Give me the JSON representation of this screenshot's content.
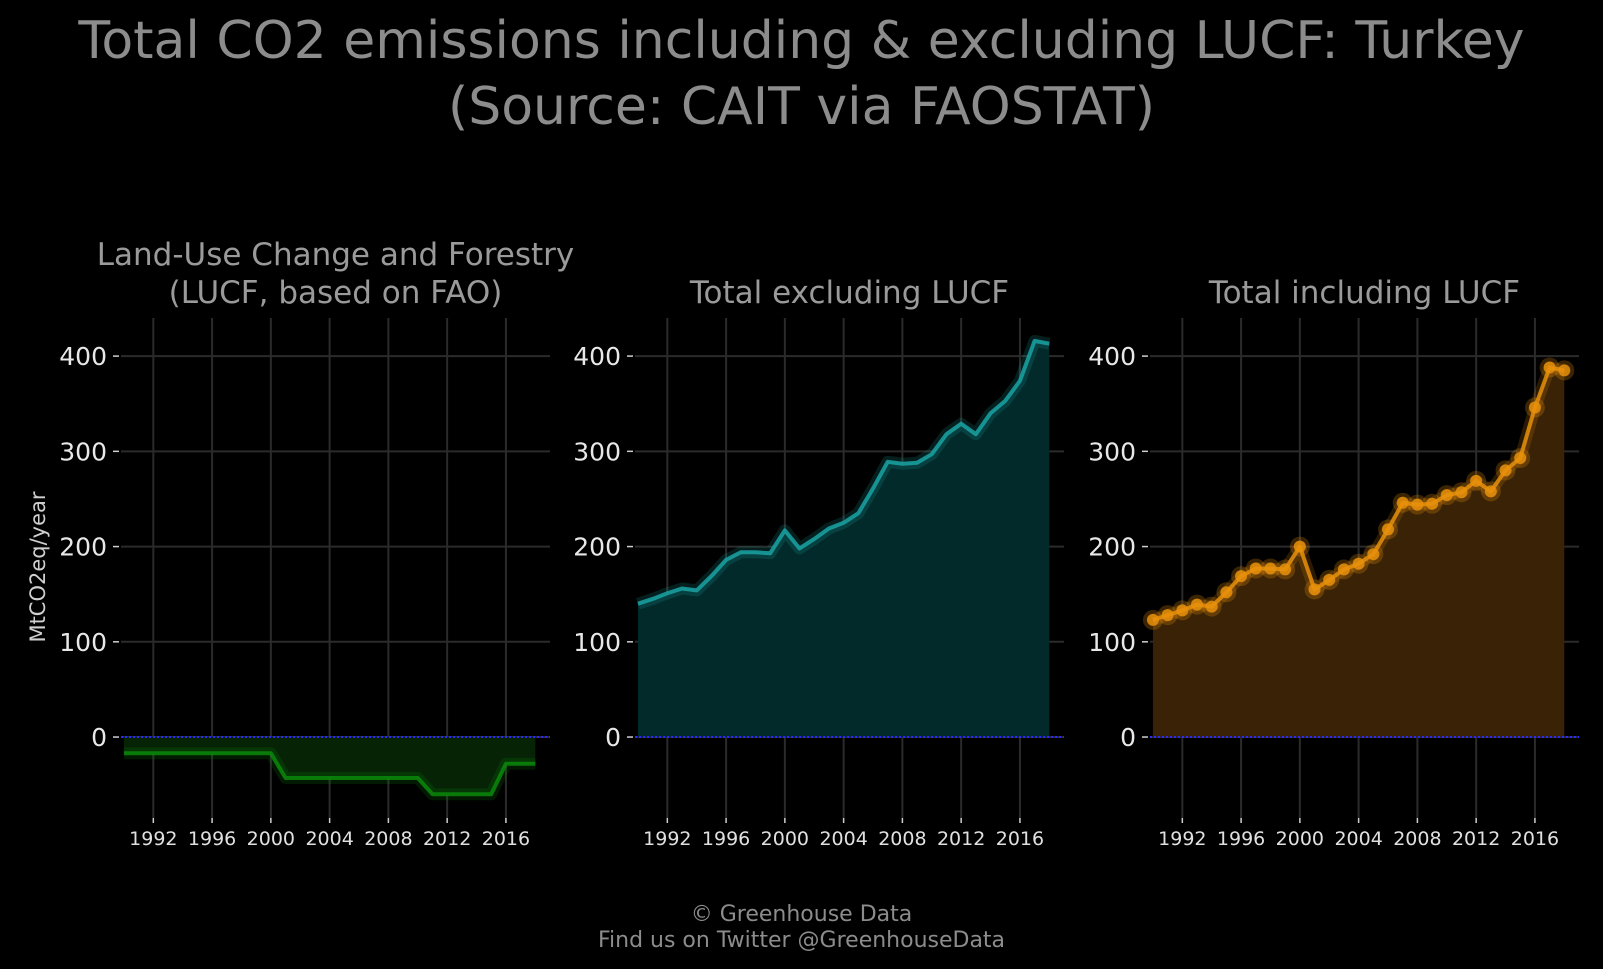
{
  "title_line1": "Total CO2 emissions including & excluding LUCF: Turkey",
  "title_line2": "(Source: CAIT via FAOSTAT)",
  "footer_line1": "© Greenhouse Data",
  "footer_line2": "Find us on Twitter @GreenhouseData",
  "ylabel": "MtCO2eq/year",
  "chart_data": [
    {
      "type": "area",
      "title_lines": [
        "Land-Use Change and Forestry",
        "(LUCF, based on FAO)"
      ],
      "color": "#0a8a0a",
      "fill": "#062306",
      "markers": false,
      "x": [
        1990,
        1991,
        1992,
        1993,
        1994,
        1995,
        1996,
        1997,
        1998,
        1999,
        2000,
        2001,
        2002,
        2003,
        2004,
        2005,
        2006,
        2007,
        2008,
        2009,
        2010,
        2011,
        2012,
        2013,
        2014,
        2015,
        2016,
        2017,
        2018
      ],
      "y": [
        -17,
        -17,
        -17,
        -17,
        -17,
        -17,
        -17,
        -17,
        -17,
        -17,
        -17,
        -43,
        -43,
        -43,
        -43,
        -43,
        -43,
        -43,
        -43,
        -43,
        -43,
        -60,
        -60,
        -60,
        -60,
        -60,
        -28,
        -28,
        -28
      ],
      "xticks": [
        "1992",
        "1996",
        "2000",
        "2004",
        "2008",
        "2012",
        "2016"
      ],
      "yticks": [
        "0",
        "100",
        "200",
        "300",
        "400"
      ],
      "ylim": [
        -85,
        440
      ],
      "xlim": [
        1989.8,
        2019
      ]
    },
    {
      "type": "area",
      "title_lines": [
        "Total excluding LUCF"
      ],
      "color": "#1aa5a5",
      "fill": "#032a2a",
      "markers": false,
      "x": [
        1990,
        1991,
        1992,
        1993,
        1994,
        1995,
        1996,
        1997,
        1998,
        1999,
        2000,
        2001,
        2002,
        2003,
        2004,
        2005,
        2006,
        2007,
        2008,
        2009,
        2010,
        2011,
        2012,
        2013,
        2014,
        2015,
        2016,
        2017,
        2018
      ],
      "y": [
        140,
        145,
        151,
        156,
        154,
        169,
        186,
        194,
        194,
        193,
        217,
        198,
        208,
        219,
        225,
        235,
        261,
        289,
        287,
        288,
        297,
        318,
        329,
        318,
        340,
        353,
        374,
        416,
        413
      ],
      "xticks": [
        "1992",
        "1996",
        "2000",
        "2004",
        "2008",
        "2012",
        "2016"
      ],
      "yticks": [
        "0",
        "100",
        "200",
        "300",
        "400"
      ],
      "ylim": [
        -85,
        440
      ],
      "xlim": [
        1989.8,
        2019
      ]
    },
    {
      "type": "area",
      "title_lines": [
        "Total including LUCF"
      ],
      "color": "#e8900c",
      "fill": "#3a2206",
      "markers": true,
      "x": [
        1990,
        1991,
        1992,
        1993,
        1994,
        1995,
        1996,
        1997,
        1998,
        1999,
        2000,
        2001,
        2002,
        2003,
        2004,
        2005,
        2006,
        2007,
        2008,
        2009,
        2010,
        2011,
        2012,
        2013,
        2014,
        2015,
        2016,
        2017,
        2018
      ],
      "y": [
        123,
        128,
        133,
        139,
        137,
        152,
        169,
        177,
        177,
        176,
        200,
        155,
        165,
        176,
        182,
        192,
        218,
        246,
        244,
        245,
        254,
        257,
        269,
        258,
        280,
        293,
        346,
        388,
        385
      ],
      "xticks": [
        "1992",
        "1996",
        "2000",
        "2004",
        "2008",
        "2012",
        "2016"
      ],
      "yticks": [
        "0",
        "100",
        "200",
        "300",
        "400"
      ],
      "ylim": [
        -85,
        440
      ],
      "xlim": [
        1989.8,
        2019
      ]
    }
  ]
}
